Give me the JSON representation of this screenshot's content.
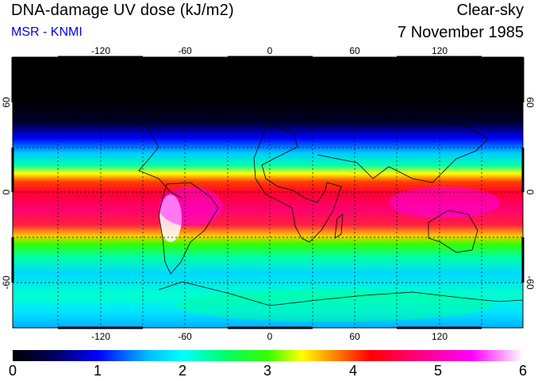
{
  "header": {
    "title": "DNA-damage UV dose (kJ/m2)",
    "source": "MSR - KNMI",
    "condition": "Clear-sky",
    "date": "7 November 1985"
  },
  "map": {
    "projection": "equirectangular",
    "lon_ticks": [
      "-120",
      "-60",
      "0",
      "60",
      "120"
    ],
    "lat_ticks_left": [
      "60",
      "0",
      "-60"
    ],
    "lat_ticks_right": [
      "60",
      "0",
      "-60"
    ],
    "grid": "dashed every 30 degrees"
  },
  "colorbar": {
    "labels": [
      "0",
      "1",
      "2",
      "3",
      "4",
      "5",
      "6"
    ],
    "stops": [
      {
        "value": 0.0,
        "color": "#000000"
      },
      {
        "value": 0.5,
        "color": "#000060"
      },
      {
        "value": 1.0,
        "color": "#0000ff"
      },
      {
        "value": 1.6,
        "color": "#00bfff"
      },
      {
        "value": 2.0,
        "color": "#00ffff"
      },
      {
        "value": 2.5,
        "color": "#00ff66"
      },
      {
        "value": 3.0,
        "color": "#33ff00"
      },
      {
        "value": 3.4,
        "color": "#ffff00"
      },
      {
        "value": 3.8,
        "color": "#ff8000"
      },
      {
        "value": 4.2,
        "color": "#ff0000"
      },
      {
        "value": 4.8,
        "color": "#ff0080"
      },
      {
        "value": 5.4,
        "color": "#ff00ff"
      },
      {
        "value": 6.0,
        "color": "#ffffff"
      }
    ]
  }
}
